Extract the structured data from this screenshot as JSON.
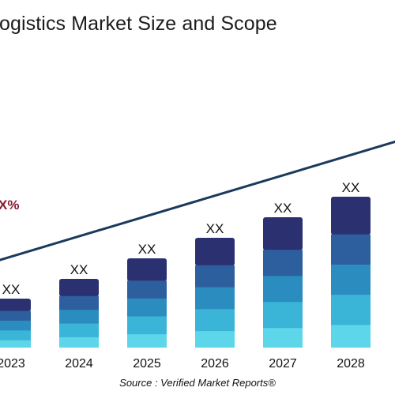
{
  "title": "ogistics Market Size and Scope",
  "cagr_label": "X%",
  "source": "Source :  Verified Market Reports®",
  "colors": {
    "bar_segments_top_to_bottom": [
      "#2b3170",
      "#2d5f9e",
      "#2a8cbf",
      "#3ab5d8",
      "#5dd6ea"
    ],
    "trend_line": "#1a3a5c",
    "cagr_text": "#8b1a2e"
  },
  "chart_data": {
    "type": "bar",
    "stacked": true,
    "categories": [
      "2023",
      "2024",
      "2025",
      "2026",
      "2027",
      "2028"
    ],
    "values": [
      62,
      87,
      113,
      139,
      165,
      191
    ],
    "data_labels": [
      "XX",
      "XX",
      "XX",
      "XX",
      "XX",
      "XX"
    ],
    "segment_shares_top_to_bottom": [
      0.25,
      0.2,
      0.2,
      0.2,
      0.15
    ],
    "trend_line": true,
    "grid": false,
    "legend": "none",
    "ylim": [
      0,
      200
    ]
  }
}
